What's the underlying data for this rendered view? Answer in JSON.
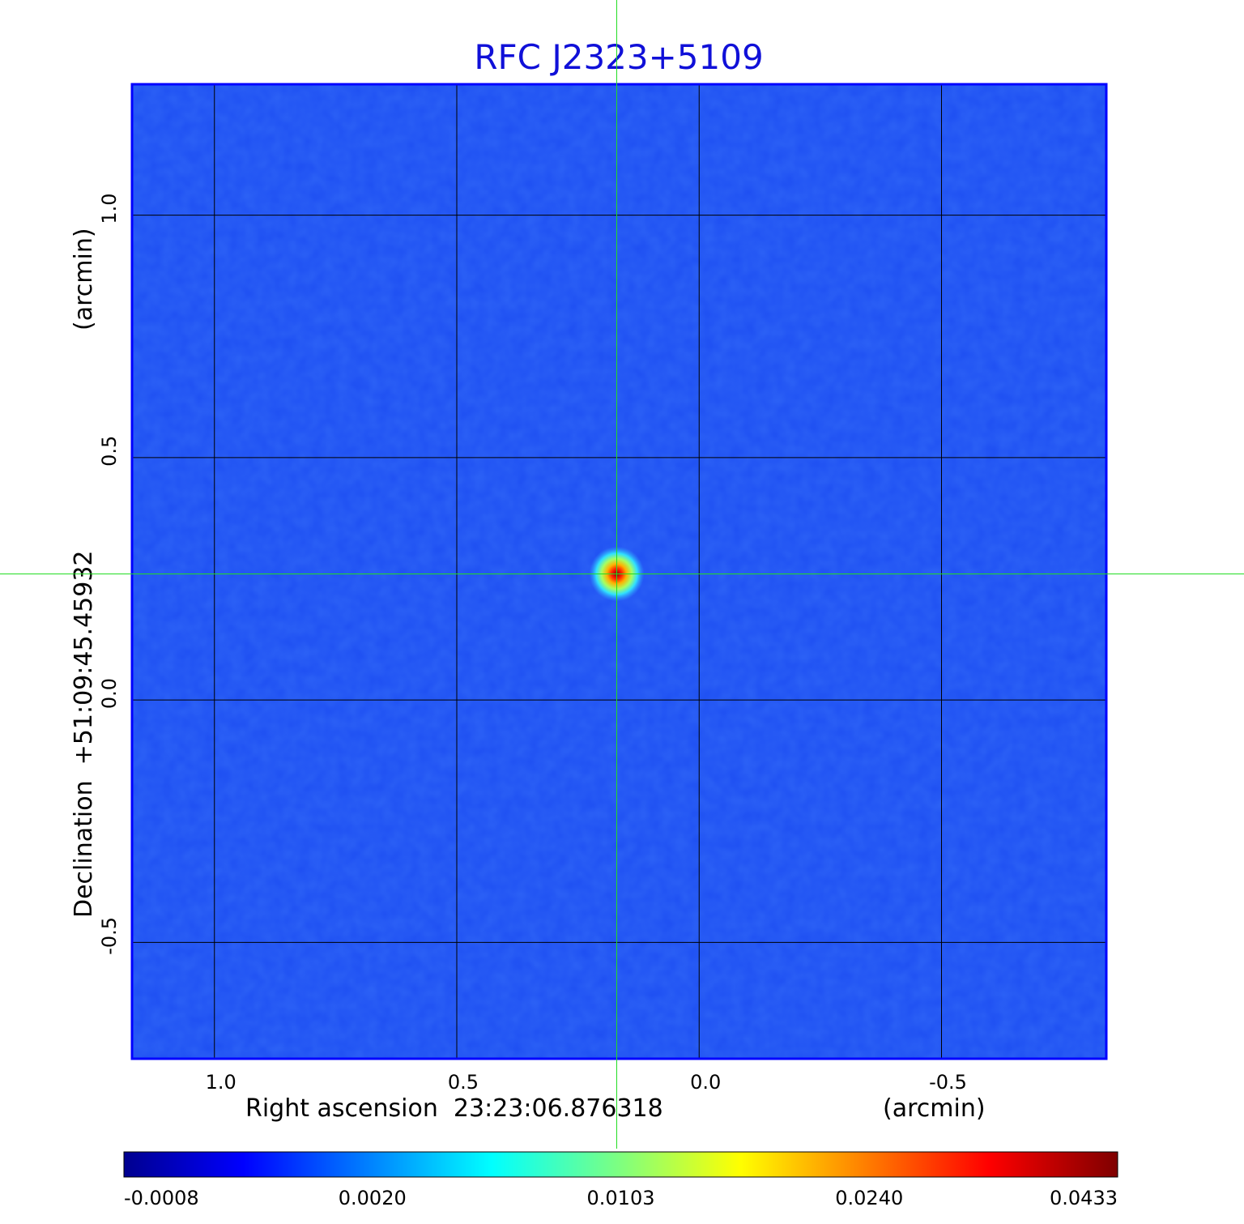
{
  "chart_data": {
    "type": "heatmap",
    "title": "RFC J2323+5109",
    "xlabel": "Right ascension  23:23:06.876318",
    "xunit": "(arcmin)",
    "ylabel": "Declination  +51:09:45.45932",
    "yunit": "(arcmin)",
    "xlim": [
      1.17,
      -0.84
    ],
    "ylim": [
      -0.74,
      1.27
    ],
    "x_ticks": [
      1.0,
      0.5,
      0.0,
      -0.5
    ],
    "x_tick_labels": [
      "1.0",
      "0.5",
      "0.0",
      "-0.5"
    ],
    "y_ticks": [
      1.0,
      0.5,
      0.0,
      -0.5
    ],
    "y_tick_labels": [
      "1.0",
      "0.5",
      "0.0",
      "-0.5"
    ],
    "grid": true,
    "source_peak": {
      "x": 0.17,
      "y": 0.26,
      "value": 0.0433
    },
    "crosshair": {
      "x": 0.17,
      "y": 0.26,
      "color": "#22dd22"
    },
    "background_level": -0.0002,
    "colorbar": {
      "colormap": "jet",
      "min": -0.0008,
      "max": 0.0433,
      "tick_labels": [
        "-0.0008",
        "0.0020",
        "0.0103",
        "0.0240",
        "0.0433"
      ]
    },
    "colors": {
      "title": "#1010d8",
      "frame": "#0000ff",
      "crosshair": "#22dd22"
    }
  }
}
